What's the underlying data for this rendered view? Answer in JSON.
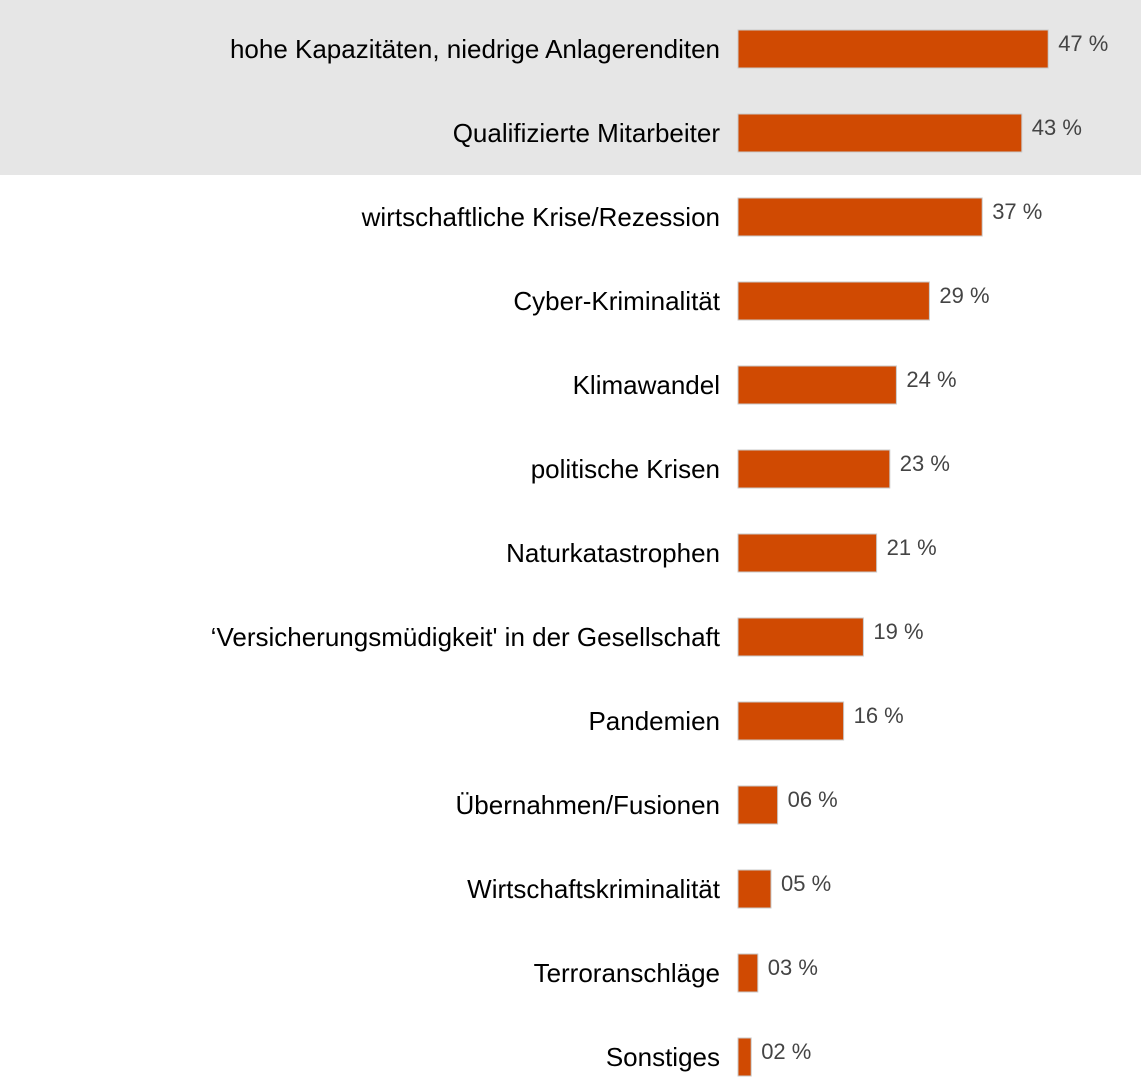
{
  "chart_data": {
    "type": "bar",
    "categories": [
      "hohe Kapazitäten, niedrige Anlagerenditen",
      "Qualifizierte Mitarbeiter",
      "wirtschaftliche Krise/Rezession",
      "Cyber-Kriminalität",
      "Klimawandel",
      "politische Krisen",
      "Naturkatastrophen",
      "‘Versicherungsmüdigkeit' in der Gesellschaft",
      "Pandemien",
      "Übernahmen/Fusionen",
      "Wirtschaftskriminalität",
      "Terroranschläge",
      "Sonstiges"
    ],
    "values": [
      47,
      43,
      37,
      29,
      24,
      23,
      21,
      19,
      16,
      6,
      5,
      3,
      2
    ],
    "value_labels": [
      "47 %",
      "43 %",
      "37 %",
      "29 %",
      "24 %",
      "23 %",
      "21 %",
      "19 %",
      "16 %",
      "06 %",
      "05 %",
      "03 %",
      "02 %"
    ],
    "color": "#d04a02"
  }
}
